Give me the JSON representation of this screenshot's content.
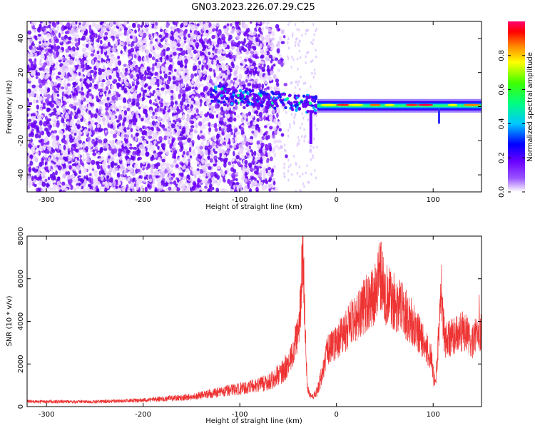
{
  "title": "GN03.2023.226.07.29.C25",
  "chart_data": [
    {
      "type": "heatmap",
      "xlabel": "Height of straight line (km)",
      "ylabel": "Frequency (Hz)",
      "xlim": [
        -320,
        150
      ],
      "ylim": [
        -50,
        50
      ],
      "x_ticks": [
        -300,
        -200,
        -100,
        0,
        100
      ],
      "y_ticks": [
        -40,
        -20,
        0,
        20,
        40
      ],
      "grid": false,
      "colorbar": {
        "label": "Normalized spectral amplitude",
        "range": [
          0.0,
          1.0
        ],
        "ticks": [
          0.0,
          0.2,
          0.4,
          0.6,
          0.8
        ],
        "colormap": [
          "#ffffff",
          "#7a00ff",
          "#0000ff",
          "#00ffff",
          "#00ff00",
          "#ffff00",
          "#ff0000",
          "#ff0066"
        ]
      },
      "regions": [
        {
          "x": [
            -320,
            -55
          ],
          "description_value": 0.25,
          "kind": "broadband noise"
        },
        {
          "x": [
            -130,
            -20
          ],
          "y_center": [
            8,
            0
          ],
          "value": 0.5,
          "kind": "transition"
        },
        {
          "x": [
            -20,
            150
          ],
          "y_center": 0.5,
          "value": 0.85,
          "kind": "narrowband carrier"
        }
      ]
    },
    {
      "type": "line",
      "xlabel": "Height of straight line (km)",
      "ylabel": "SNR (10 * v/v)",
      "xlim": [
        -320,
        150
      ],
      "ylim": [
        0,
        8000
      ],
      "x_ticks": [
        -300,
        -200,
        -100,
        0,
        100
      ],
      "y_ticks": [
        0,
        2000,
        4000,
        6000,
        8000
      ],
      "grid": false,
      "series_color": "#ee3333",
      "envelope": [
        {
          "x": -320,
          "y": 250
        },
        {
          "x": -300,
          "y": 230
        },
        {
          "x": -250,
          "y": 230
        },
        {
          "x": -200,
          "y": 300
        },
        {
          "x": -150,
          "y": 450
        },
        {
          "x": -120,
          "y": 700
        },
        {
          "x": -100,
          "y": 850
        },
        {
          "x": -80,
          "y": 1000
        },
        {
          "x": -65,
          "y": 1300
        },
        {
          "x": -55,
          "y": 1700
        },
        {
          "x": -48,
          "y": 2200
        },
        {
          "x": -44,
          "y": 2800
        },
        {
          "x": -40,
          "y": 3500
        },
        {
          "x": -37,
          "y": 5000
        },
        {
          "x": -35,
          "y": 7800
        },
        {
          "x": -33,
          "y": 4500
        },
        {
          "x": -30,
          "y": 800
        },
        {
          "x": -25,
          "y": 400
        },
        {
          "x": -20,
          "y": 700
        },
        {
          "x": -15,
          "y": 1500
        },
        {
          "x": -10,
          "y": 2600
        },
        {
          "x": 0,
          "y": 3000
        },
        {
          "x": 10,
          "y": 3600
        },
        {
          "x": 20,
          "y": 4200
        },
        {
          "x": 30,
          "y": 4800
        },
        {
          "x": 40,
          "y": 5300
        },
        {
          "x": 45,
          "y": 6400
        },
        {
          "x": 50,
          "y": 5300
        },
        {
          "x": 60,
          "y": 4900
        },
        {
          "x": 70,
          "y": 4500
        },
        {
          "x": 80,
          "y": 3800
        },
        {
          "x": 90,
          "y": 3000
        },
        {
          "x": 98,
          "y": 2300
        },
        {
          "x": 102,
          "y": 1000
        },
        {
          "x": 105,
          "y": 2800
        },
        {
          "x": 108,
          "y": 5800
        },
        {
          "x": 112,
          "y": 3000
        },
        {
          "x": 120,
          "y": 3300
        },
        {
          "x": 130,
          "y": 3600
        },
        {
          "x": 140,
          "y": 3100
        },
        {
          "x": 150,
          "y": 3500
        }
      ]
    }
  ]
}
